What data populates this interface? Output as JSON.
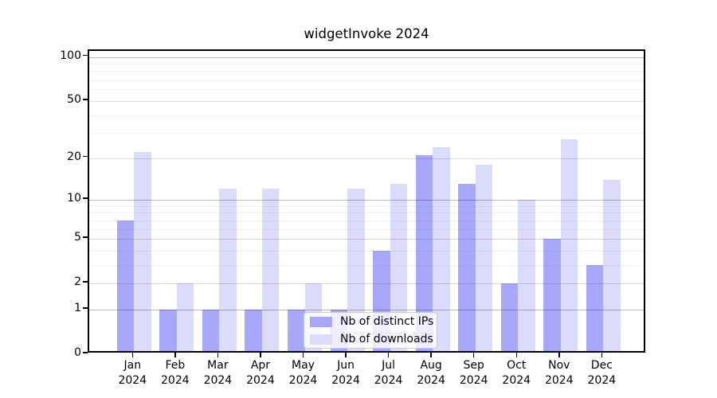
{
  "title": "widgetInvoke 2024",
  "chart_data": {
    "type": "bar",
    "title": "widgetInvoke 2024",
    "categories": [
      "Jan",
      "Feb",
      "Mar",
      "Apr",
      "May",
      "Jun",
      "Jul",
      "Aug",
      "Sep",
      "Oct",
      "Nov",
      "Dec"
    ],
    "x_tick_year": "2024",
    "series": [
      {
        "name": "Nb of distinct IPs",
        "color": "#a8a8fa",
        "values": [
          7,
          1,
          1,
          1,
          1,
          1,
          4,
          21,
          13,
          2,
          5,
          3
        ]
      },
      {
        "name": "Nb of downloads",
        "color": "#dbdbfa",
        "values": [
          22,
          2,
          12,
          12,
          2,
          12,
          13,
          24,
          18,
          10,
          27,
          14
        ]
      }
    ],
    "yscale": "log1p",
    "ylim": [
      0,
      110
    ],
    "y_major_ticks": [
      0,
      1,
      2,
      5,
      10,
      20,
      50,
      100
    ],
    "y_minor_gridlines": [
      3,
      4,
      6,
      7,
      8,
      9,
      30,
      40,
      60,
      70,
      80,
      90
    ],
    "grid": true,
    "legend_position": "inside-bottom-center"
  }
}
